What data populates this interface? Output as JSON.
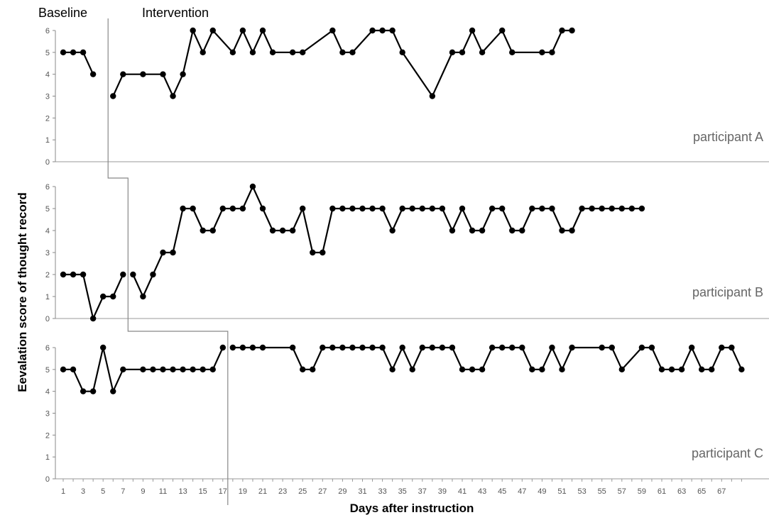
{
  "chart_data": {
    "type": "line",
    "xlabel": "Days after instruction",
    "ylabel": "Eevalation score of thought record",
    "xlim": [
      1,
      68
    ],
    "ylim": [
      0,
      6
    ],
    "x_tick_labels": [
      "1",
      "3",
      "5",
      "7",
      "9",
      "11",
      "13",
      "15",
      "17",
      "19",
      "21",
      "23",
      "25",
      "27",
      "29",
      "31",
      "33",
      "35",
      "37",
      "39",
      "41",
      "43",
      "45",
      "47",
      "49",
      "51",
      "53",
      "55",
      "57",
      "59",
      "61",
      "63",
      "65",
      "67"
    ],
    "y_tick_labels": [
      "0",
      "1",
      "2",
      "3",
      "4",
      "5",
      "6"
    ],
    "phase_labels": [
      "Baseline",
      "Intervention"
    ],
    "panels": [
      {
        "name": "participant A",
        "phase_change_after_day": 5,
        "segments": [
          {
            "phase": "Baseline",
            "points": [
              [
                1,
                5
              ],
              [
                2,
                5
              ],
              [
                3,
                5
              ],
              [
                4,
                4
              ]
            ]
          },
          {
            "phase": "Intervention",
            "points": [
              [
                6,
                3
              ],
              [
                7,
                4
              ],
              [
                9,
                4
              ],
              [
                11,
                4
              ],
              [
                12,
                3
              ],
              [
                13,
                4
              ],
              [
                14,
                6
              ],
              [
                15,
                5
              ],
              [
                16,
                6
              ],
              [
                18,
                5
              ],
              [
                19,
                6
              ],
              [
                20,
                5
              ],
              [
                21,
                6
              ],
              [
                22,
                5
              ],
              [
                24,
                5
              ],
              [
                25,
                5
              ],
              [
                28,
                6
              ],
              [
                29,
                5
              ],
              [
                30,
                5
              ],
              [
                32,
                6
              ],
              [
                33,
                6
              ],
              [
                34,
                6
              ],
              [
                35,
                5
              ],
              [
                38,
                3
              ],
              [
                40,
                5
              ],
              [
                41,
                5
              ],
              [
                42,
                6
              ],
              [
                43,
                5
              ],
              [
                45,
                6
              ],
              [
                46,
                5
              ],
              [
                49,
                5
              ],
              [
                50,
                5
              ],
              [
                51,
                6
              ],
              [
                52,
                6
              ]
            ]
          }
        ]
      },
      {
        "name": "participant B",
        "phase_change_after_day": 7,
        "segments": [
          {
            "phase": "Baseline",
            "points": [
              [
                1,
                2
              ],
              [
                2,
                2
              ],
              [
                3,
                2
              ],
              [
                4,
                0
              ],
              [
                5,
                1
              ],
              [
                6,
                1
              ],
              [
                7,
                2
              ]
            ]
          },
          {
            "phase": "Intervention",
            "points": [
              [
                8,
                2
              ],
              [
                9,
                1
              ],
              [
                10,
                2
              ],
              [
                11,
                3
              ],
              [
                12,
                3
              ],
              [
                13,
                5
              ],
              [
                14,
                5
              ],
              [
                15,
                4
              ],
              [
                16,
                4
              ],
              [
                17,
                5
              ],
              [
                18,
                5
              ],
              [
                19,
                5
              ],
              [
                20,
                6
              ],
              [
                21,
                5
              ],
              [
                22,
                4
              ],
              [
                23,
                4
              ],
              [
                24,
                4
              ],
              [
                25,
                5
              ],
              [
                26,
                3
              ],
              [
                27,
                3
              ],
              [
                28,
                5
              ],
              [
                29,
                5
              ],
              [
                30,
                5
              ],
              [
                31,
                5
              ],
              [
                32,
                5
              ],
              [
                33,
                5
              ],
              [
                34,
                4
              ],
              [
                35,
                5
              ],
              [
                36,
                5
              ],
              [
                37,
                5
              ],
              [
                38,
                5
              ],
              [
                39,
                5
              ],
              [
                40,
                4
              ],
              [
                41,
                5
              ],
              [
                42,
                4
              ],
              [
                43,
                4
              ],
              [
                44,
                5
              ],
              [
                45,
                5
              ],
              [
                46,
                4
              ],
              [
                47,
                4
              ],
              [
                48,
                5
              ],
              [
                49,
                5
              ],
              [
                50,
                5
              ],
              [
                51,
                4
              ],
              [
                52,
                4
              ],
              [
                53,
                5
              ],
              [
                54,
                5
              ],
              [
                55,
                5
              ],
              [
                56,
                5
              ],
              [
                57,
                5
              ],
              [
                58,
                5
              ],
              [
                59,
                5
              ]
            ]
          }
        ]
      },
      {
        "name": "participant C",
        "phase_change_after_day": 17,
        "segments": [
          {
            "phase": "Baseline",
            "points": [
              [
                1,
                5
              ],
              [
                2,
                5
              ],
              [
                3,
                4
              ],
              [
                4,
                4
              ],
              [
                5,
                6
              ],
              [
                6,
                4
              ],
              [
                7,
                5
              ],
              [
                9,
                5
              ],
              [
                10,
                5
              ],
              [
                11,
                5
              ],
              [
                12,
                5
              ],
              [
                13,
                5
              ],
              [
                14,
                5
              ],
              [
                15,
                5
              ],
              [
                16,
                5
              ],
              [
                17,
                6
              ]
            ]
          },
          {
            "phase": "Intervention",
            "points": [
              [
                18,
                6
              ],
              [
                19,
                6
              ],
              [
                20,
                6
              ],
              [
                21,
                6
              ],
              [
                24,
                6
              ],
              [
                25,
                5
              ],
              [
                26,
                5
              ],
              [
                27,
                6
              ],
              [
                28,
                6
              ],
              [
                29,
                6
              ],
              [
                30,
                6
              ],
              [
                31,
                6
              ],
              [
                32,
                6
              ],
              [
                33,
                6
              ],
              [
                34,
                5
              ],
              [
                35,
                6
              ],
              [
                36,
                5
              ],
              [
                37,
                6
              ],
              [
                38,
                6
              ],
              [
                39,
                6
              ],
              [
                40,
                6
              ],
              [
                41,
                5
              ],
              [
                42,
                5
              ],
              [
                43,
                5
              ],
              [
                44,
                6
              ],
              [
                45,
                6
              ],
              [
                46,
                6
              ],
              [
                47,
                6
              ],
              [
                48,
                5
              ],
              [
                49,
                5
              ],
              [
                50,
                6
              ],
              [
                51,
                5
              ],
              [
                52,
                6
              ],
              [
                55,
                6
              ],
              [
                56,
                6
              ],
              [
                57,
                5
              ],
              [
                59,
                6
              ],
              [
                60,
                6
              ],
              [
                61,
                5
              ],
              [
                62,
                5
              ],
              [
                63,
                5
              ],
              [
                64,
                6
              ],
              [
                65,
                5
              ],
              [
                66,
                5
              ],
              [
                67,
                6
              ],
              [
                68,
                6
              ],
              [
                69,
                5
              ]
            ]
          }
        ]
      }
    ]
  }
}
